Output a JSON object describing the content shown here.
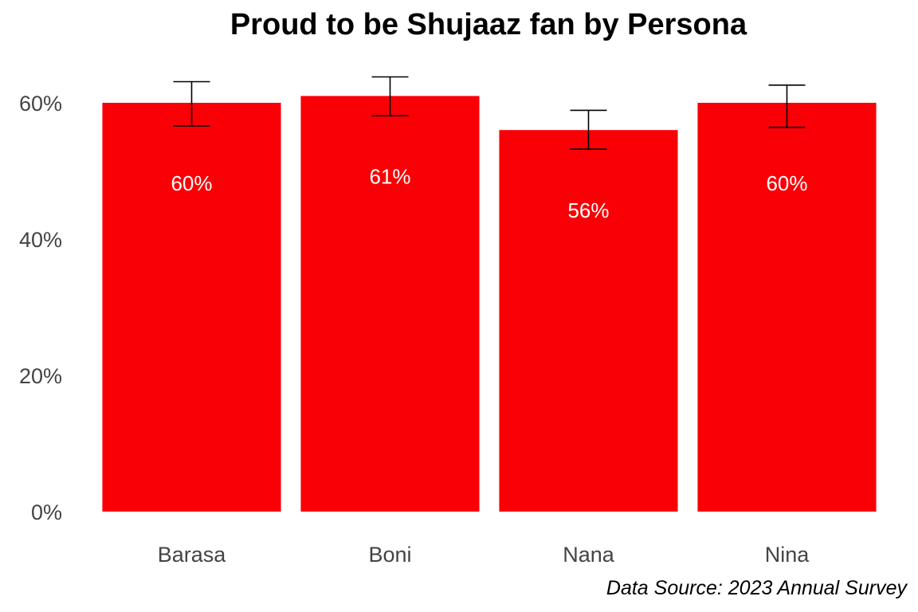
{
  "chart_data": {
    "type": "bar",
    "title": "Proud to be Shujaaz fan by Persona",
    "categories": [
      "Barasa",
      "Boni",
      "Nana",
      "Nina"
    ],
    "values": [
      60,
      61,
      56,
      60
    ],
    "error_bars": [
      {
        "low": 56.6,
        "high": 63.1
      },
      {
        "low": 58.1,
        "high": 63.8
      },
      {
        "low": 53.2,
        "high": 58.9
      },
      {
        "low": 56.4,
        "high": 62.6
      }
    ],
    "labels": [
      "60%",
      "61%",
      "56%",
      "60%"
    ],
    "yticks": [
      0,
      20,
      40,
      60
    ],
    "ytick_labels": [
      "0%",
      "20%",
      "40%",
      "60%"
    ],
    "ylim": [
      0,
      65
    ],
    "bar_color": "#f90006",
    "grid": false,
    "caption": "Data Source: 2023 Annual Survey"
  }
}
